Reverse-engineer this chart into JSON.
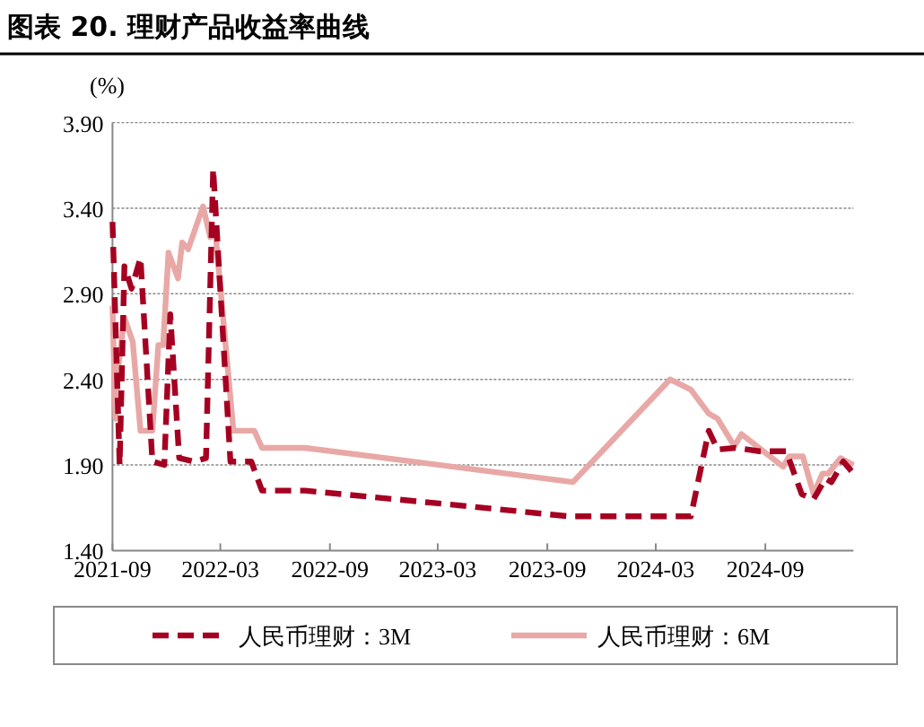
{
  "chart_data": {
    "type": "line",
    "title": "图表 20.  理财产品收益率曲线",
    "ylabel": "(%)",
    "xlim": [
      "2021-09-01",
      "2025-01-27"
    ],
    "xticks": [
      "2021-09",
      "2022-03",
      "2022-09",
      "2023-03",
      "2023-09",
      "2024-03",
      "2024-09"
    ],
    "ylim": [
      1.4,
      3.9
    ],
    "yticks": [
      {
        "value": 1.4,
        "label": "1.40"
      },
      {
        "value": 1.9,
        "label": "1.90"
      },
      {
        "value": 2.4,
        "label": "2.40"
      },
      {
        "value": 2.9,
        "label": "2.90"
      },
      {
        "value": 3.4,
        "label": "3.40"
      },
      {
        "value": 3.9,
        "label": "3.90"
      }
    ],
    "grid": "y",
    "legend": "bottom",
    "series": [
      {
        "name": "人民币理财：3M",
        "color": "#a50021",
        "line_style": "dashed",
        "x": [
          "2021-09-01",
          "2021-09-13",
          "2021-09-21",
          "2021-10-03",
          "2021-10-18",
          "2021-11-07",
          "2021-11-27",
          "2021-12-07",
          "2021-12-22",
          "2022-01-16",
          "2022-02-05",
          "2022-02-17",
          "2022-03-18",
          "2022-04-22",
          "2022-05-10",
          "2022-07-21",
          "2023-04-18",
          "2023-10-06",
          "2024-04-29",
          "2024-05-29",
          "2024-06-13",
          "2024-07-13",
          "2024-08-22",
          "2024-10-06",
          "2024-11-01",
          "2024-11-21",
          "2024-12-11",
          "2024-12-21",
          "2025-01-10",
          "2025-01-27"
        ],
        "values": [
          3.32,
          1.9,
          3.06,
          2.93,
          3.11,
          1.92,
          1.9,
          2.78,
          1.94,
          1.92,
          1.94,
          3.63,
          1.92,
          1.92,
          1.75,
          1.75,
          1.66,
          1.6,
          1.6,
          2.1,
          1.99,
          2.0,
          1.98,
          1.98,
          1.73,
          1.7,
          1.82,
          1.8,
          1.92,
          1.85
        ]
      },
      {
        "name": "人民币理财：6M",
        "color": "#e8a8a6",
        "line_style": "solid",
        "x": [
          "2021-09-01",
          "2021-09-06",
          "2021-09-11",
          "2021-09-21",
          "2021-10-05",
          "2021-10-18",
          "2021-11-07",
          "2021-11-17",
          "2021-11-25",
          "2021-12-04",
          "2021-12-20",
          "2021-12-27",
          "2022-01-06",
          "2022-01-31",
          "2022-02-12",
          "2022-02-21",
          "2022-03-23",
          "2022-04-27",
          "2022-05-10",
          "2022-07-21",
          "2023-04-18",
          "2023-10-14",
          "2024-03-25",
          "2024-04-29",
          "2024-05-29",
          "2024-06-13",
          "2024-07-11",
          "2024-07-23",
          "2024-10-01",
          "2024-10-11",
          "2024-11-03",
          "2024-11-21",
          "2024-12-06",
          "2024-12-16",
          "2025-01-05",
          "2025-01-27"
        ],
        "values": [
          2.83,
          2.17,
          2.48,
          2.76,
          2.62,
          2.1,
          2.1,
          2.6,
          2.6,
          3.14,
          2.99,
          3.2,
          3.16,
          3.41,
          3.23,
          3.25,
          2.1,
          2.1,
          2.0,
          2.0,
          1.88,
          1.8,
          2.4,
          2.34,
          2.2,
          2.17,
          2.01,
          2.08,
          1.89,
          1.95,
          1.95,
          1.73,
          1.85,
          1.85,
          1.94,
          1.9
        ]
      }
    ]
  }
}
